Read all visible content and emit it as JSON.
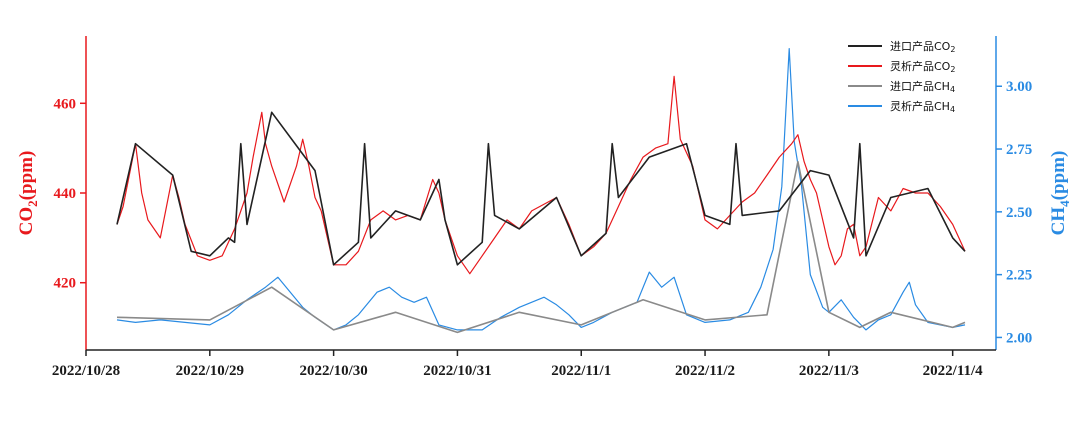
{
  "chart_data": {
    "type": "line",
    "title": "",
    "x_axis": {
      "tick_labels": [
        "2022/10/28",
        "2022/10/29",
        "2022/10/30",
        "2022/10/31",
        "2022/11/1",
        "2022/11/2",
        "2022/11/3",
        "2022/11/4"
      ],
      "range": [
        0,
        7.35
      ]
    },
    "y_left": {
      "label_main": "CO",
      "label_sub": "2",
      "label_unit": "(ppm)",
      "ticks": [
        "420",
        "440",
        "460"
      ],
      "range": [
        405,
        475
      ]
    },
    "y_right": {
      "label_main": "CH",
      "label_sub": "4",
      "label_unit": "(ppm)",
      "ticks": [
        "2.00",
        "2.25",
        "2.50",
        "2.75",
        "3.00"
      ],
      "range": [
        1.95,
        3.2
      ]
    },
    "legend": {
      "placement": "top-right",
      "entries": [
        {
          "main": "进口产品CO",
          "sub": "2",
          "color": "#222222"
        },
        {
          "main": "灵析产品CO",
          "sub": "2",
          "color": "#e8191d"
        },
        {
          "main": "进口产品CH",
          "sub": "4",
          "color": "#8a8a8a"
        },
        {
          "main": "灵析产品CH",
          "sub": "4",
          "color": "#2a8be3"
        }
      ]
    },
    "series": [
      {
        "name": "进口产品CO2",
        "axis": "left",
        "color": "#222222",
        "x": [
          0.25,
          0.4,
          0.7,
          0.85,
          1.0,
          1.15,
          1.2,
          1.25,
          1.3,
          1.5,
          1.85,
          2.0,
          2.2,
          2.25,
          2.3,
          2.5,
          2.7,
          2.85,
          2.9,
          3.0,
          3.2,
          3.25,
          3.3,
          3.5,
          3.8,
          4.0,
          4.2,
          4.25,
          4.3,
          4.55,
          4.85,
          5.0,
          5.2,
          5.25,
          5.3,
          5.6,
          5.85,
          6.0,
          6.2,
          6.25,
          6.3,
          6.5,
          6.8,
          7.0,
          7.1
        ],
        "y": [
          433,
          451,
          444,
          427,
          426,
          430,
          429,
          451,
          433,
          458,
          445,
          424,
          429,
          451,
          430,
          436,
          434,
          443,
          434,
          424,
          429,
          451,
          435,
          432,
          439,
          426,
          431,
          451,
          439,
          448,
          451,
          435,
          433,
          451,
          435,
          436,
          445,
          444,
          430,
          451,
          426,
          439,
          441,
          430,
          427
        ]
      },
      {
        "name": "灵析产品CO2",
        "axis": "left",
        "color": "#e8191d",
        "x": [
          0.25,
          0.3,
          0.35,
          0.4,
          0.45,
          0.5,
          0.6,
          0.65,
          0.7,
          0.75,
          0.8,
          0.9,
          1.0,
          1.1,
          1.2,
          1.3,
          1.35,
          1.42,
          1.45,
          1.5,
          1.6,
          1.7,
          1.75,
          1.8,
          1.85,
          1.9,
          2.0,
          2.1,
          2.2,
          2.3,
          2.4,
          2.5,
          2.6,
          2.7,
          2.8,
          2.85,
          2.9,
          3.0,
          3.1,
          3.2,
          3.3,
          3.4,
          3.5,
          3.6,
          3.8,
          3.9,
          4.0,
          4.1,
          4.2,
          4.3,
          4.4,
          4.5,
          4.6,
          4.7,
          4.75,
          4.8,
          4.9,
          5.0,
          5.1,
          5.2,
          5.3,
          5.4,
          5.5,
          5.6,
          5.7,
          5.75,
          5.8,
          5.85,
          5.9,
          6.0,
          6.05,
          6.1,
          6.15,
          6.2,
          6.25,
          6.3,
          6.4,
          6.5,
          6.6,
          6.7,
          6.8,
          6.9,
          7.0,
          7.05,
          7.1
        ],
        "y": [
          433,
          437,
          444,
          451,
          440,
          434,
          430,
          437,
          444,
          439,
          433,
          426,
          425,
          426,
          432,
          440,
          448,
          458,
          451,
          446,
          438,
          446,
          452,
          446,
          439,
          436,
          424,
          424,
          427,
          434,
          436,
          434,
          435,
          434,
          443,
          440,
          434,
          426,
          422,
          426,
          430,
          434,
          432,
          436,
          439,
          433,
          426,
          428,
          431,
          437,
          443,
          448,
          450,
          451,
          466,
          452,
          446,
          434,
          432,
          435,
          438,
          440,
          444,
          448,
          451,
          453,
          447,
          443,
          440,
          428,
          424,
          426,
          432,
          433,
          426,
          428,
          439,
          436,
          441,
          440,
          440,
          437,
          433,
          430,
          427
        ]
      },
      {
        "name": "进口产品CH4",
        "axis": "right",
        "color": "#8a8a8a",
        "x": [
          0.25,
          1.0,
          1.5,
          2.0,
          2.5,
          3.0,
          3.5,
          4.0,
          4.5,
          5.0,
          5.5,
          5.75,
          6.0,
          6.25,
          6.5,
          7.0,
          7.1
        ],
        "y": [
          2.08,
          2.07,
          2.2,
          2.03,
          2.1,
          2.02,
          2.1,
          2.05,
          2.15,
          2.07,
          2.09,
          2.7,
          2.1,
          2.04,
          2.1,
          2.04,
          2.06
        ]
      },
      {
        "name": "灵析产品CH4",
        "axis": "right",
        "color": "#2a8be3",
        "x": [
          0.25,
          0.4,
          0.6,
          0.8,
          1.0,
          1.15,
          1.3,
          1.45,
          1.55,
          1.65,
          1.75,
          1.85,
          2.0,
          2.1,
          2.2,
          2.35,
          2.45,
          2.55,
          2.65,
          2.75,
          2.85,
          3.0,
          3.2,
          3.35,
          3.5,
          3.7,
          3.8,
          3.9,
          4.0,
          4.1,
          4.25,
          4.45,
          4.55,
          4.65,
          4.75,
          4.85,
          5.0,
          5.2,
          5.35,
          5.45,
          5.55,
          5.62,
          5.68,
          5.72,
          5.78,
          5.85,
          5.95,
          6.0,
          6.1,
          6.2,
          6.3,
          6.4,
          6.5,
          6.6,
          6.65,
          6.7,
          6.8,
          6.9,
          7.0,
          7.1
        ],
        "y": [
          2.07,
          2.06,
          2.07,
          2.06,
          2.05,
          2.09,
          2.15,
          2.2,
          2.24,
          2.18,
          2.12,
          2.08,
          2.03,
          2.05,
          2.09,
          2.18,
          2.2,
          2.16,
          2.14,
          2.16,
          2.05,
          2.03,
          2.03,
          2.08,
          2.12,
          2.16,
          2.13,
          2.09,
          2.04,
          2.06,
          2.1,
          2.14,
          2.26,
          2.2,
          2.24,
          2.09,
          2.06,
          2.07,
          2.1,
          2.2,
          2.35,
          2.6,
          3.15,
          2.78,
          2.6,
          2.25,
          2.12,
          2.1,
          2.15,
          2.08,
          2.03,
          2.07,
          2.09,
          2.18,
          2.22,
          2.13,
          2.06,
          2.05,
          2.04,
          2.05
        ]
      }
    ]
  }
}
